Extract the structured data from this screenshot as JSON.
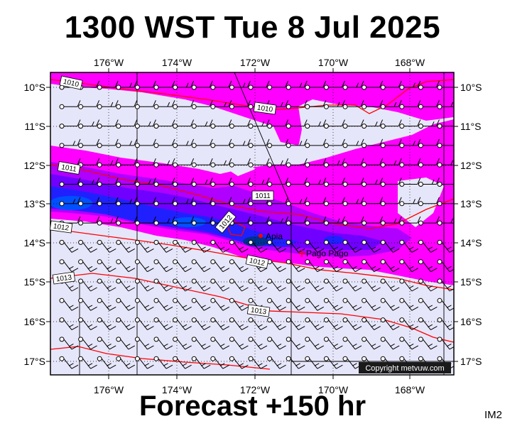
{
  "title": "1300 WST Tue 8 Jul 2025",
  "footer": "Forecast +150 hr",
  "badge": "IM2",
  "map": {
    "lon_labels": [
      "176°W",
      "174°W",
      "172°W",
      "170°W",
      "168°W"
    ],
    "lat_labels": [
      "10°S",
      "11°S",
      "12°S",
      "13°S",
      "14°S",
      "15°S",
      "16°S",
      "17°S"
    ],
    "isobar_labels": [
      "1010",
      "1010",
      "1011",
      "1011",
      "1012",
      "1012",
      "1012",
      "1013",
      "1013"
    ],
    "places": [
      {
        "name": "Apia",
        "marker_color": "#ff0000"
      },
      {
        "name": "Pago Pago",
        "marker_color": "#ff0000"
      }
    ],
    "copyright": "Copyright metvuw.com",
    "colors": {
      "background": "#e6e6fa",
      "rain_light": "#ff00ff",
      "rain_medium": "#a000ff",
      "rain_heavy": "#0000ff",
      "rain_extreme": "#0040ff",
      "isobar": "#ff0000",
      "wind_barb": "#000000"
    }
  }
}
